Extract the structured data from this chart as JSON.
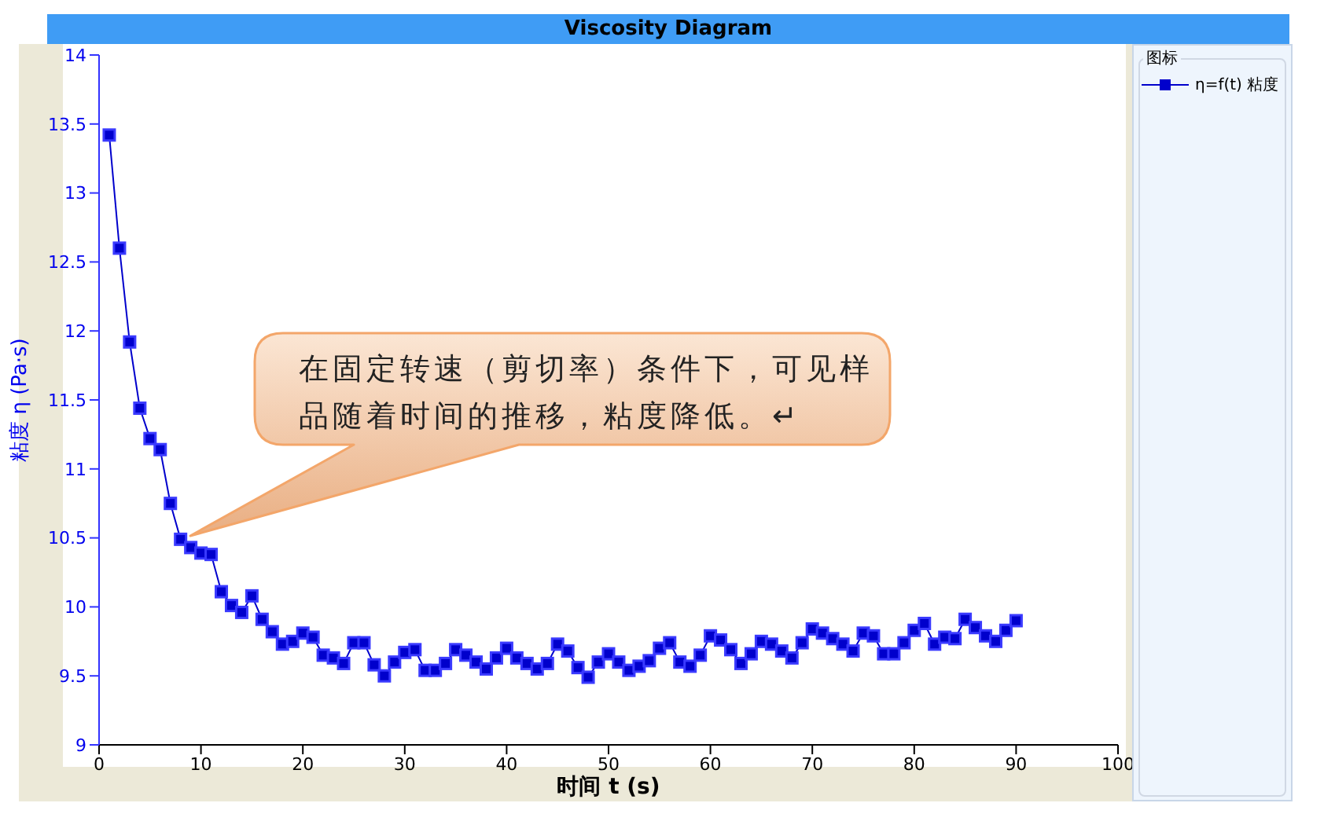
{
  "chart_data": {
    "type": "line",
    "title": "Viscosity Diagram",
    "xlabel": "时间 t (s)",
    "ylabel": "粘度 η (Pa·s)",
    "legend_title": "图标",
    "x": [
      1,
      2,
      3,
      4,
      5,
      6,
      7,
      8,
      9,
      10,
      11,
      12,
      13,
      14,
      15,
      16,
      17,
      18,
      19,
      20,
      21,
      22,
      23,
      24,
      25,
      26,
      27,
      28,
      29,
      30,
      31,
      32,
      33,
      34,
      35,
      36,
      37,
      38,
      39,
      40,
      41,
      42,
      43,
      44,
      45,
      46,
      47,
      48,
      49,
      50,
      51,
      52,
      53,
      54,
      55,
      56,
      57,
      58,
      59,
      60,
      61,
      62,
      63,
      64,
      65,
      66,
      67,
      68,
      69,
      70,
      71,
      72,
      73,
      74,
      75,
      76,
      77,
      78,
      79,
      80,
      81,
      82,
      83,
      84,
      85,
      86,
      87,
      88,
      89,
      90
    ],
    "series": [
      {
        "name": "η=f(t) 粘度",
        "color": "#0000cc",
        "values": [
          13.42,
          12.6,
          11.92,
          11.44,
          11.22,
          11.14,
          10.75,
          10.49,
          10.43,
          10.39,
          10.38,
          10.11,
          10.01,
          9.96,
          10.08,
          9.91,
          9.82,
          9.73,
          9.75,
          9.81,
          9.78,
          9.65,
          9.63,
          9.59,
          9.74,
          9.74,
          9.58,
          9.5,
          9.6,
          9.67,
          9.69,
          9.54,
          9.54,
          9.59,
          9.69,
          9.65,
          9.6,
          9.55,
          9.63,
          9.7,
          9.63,
          9.59,
          9.55,
          9.59,
          9.73,
          9.68,
          9.56,
          9.49,
          9.6,
          9.66,
          9.6,
          9.54,
          9.57,
          9.61,
          9.7,
          9.74,
          9.6,
          9.57,
          9.65,
          9.79,
          9.76,
          9.69,
          9.59,
          9.66,
          9.75,
          9.73,
          9.68,
          9.63,
          9.74,
          9.84,
          9.81,
          9.77,
          9.73,
          9.68,
          9.81,
          9.79,
          9.66,
          9.66,
          9.74,
          9.83,
          9.88,
          9.73,
          9.78,
          9.77,
          9.91,
          9.85,
          9.79,
          9.75,
          9.83,
          9.9
        ]
      }
    ],
    "xlim": [
      0,
      100
    ],
    "xticks": [
      0,
      10,
      20,
      30,
      40,
      50,
      60,
      70,
      80,
      90,
      100
    ],
    "ylim": [
      9,
      14
    ],
    "yticks": [
      9,
      9.5,
      10,
      10.5,
      11,
      11.5,
      12,
      12.5,
      13,
      13.5,
      14
    ],
    "annotations": [
      "在固定转速（剪切率）条件下，可见样品随着时间的推移，粘度降低。↵"
    ],
    "grid": false,
    "legend": "right",
    "marker": "square",
    "line_style": "solid"
  }
}
